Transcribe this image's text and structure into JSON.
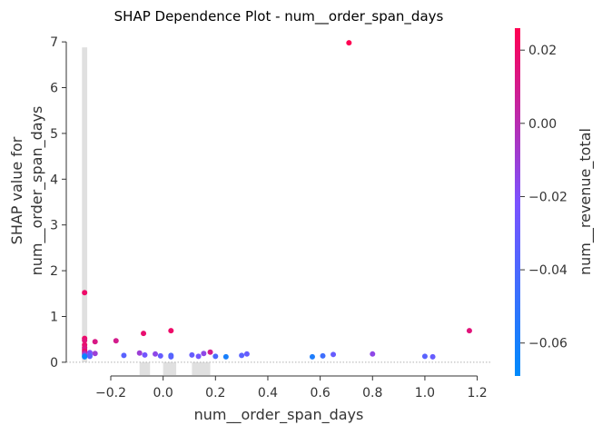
{
  "chart_data": {
    "type": "scatter",
    "title": "SHAP Dependence Plot - num__order_span_days",
    "xlabel": "num__order_span_days",
    "ylabel_lines": [
      "SHAP value for",
      "num__order_span_days"
    ],
    "xlim": [
      -0.37,
      1.25
    ],
    "ylim": [
      -0.3,
      7.3
    ],
    "x_ticks": [
      -0.2,
      0.0,
      0.2,
      0.4,
      0.6,
      0.8,
      1.0,
      1.2
    ],
    "x_tick_labels": [
      "−0.2",
      "0.0",
      "0.2",
      "0.4",
      "0.6",
      "0.8",
      "1.0",
      "1.2"
    ],
    "y_ticks": [
      0,
      1,
      2,
      3,
      4,
      5,
      6,
      7
    ],
    "y_tick_labels": [
      "0",
      "1",
      "2",
      "3",
      "4",
      "5",
      "6",
      "7"
    ],
    "grid": false,
    "zero_line": true,
    "colorbar": {
      "label": "num__revenue_total",
      "range": [
        -0.069,
        0.026
      ],
      "ticks": [
        0.02,
        0.0,
        -0.02,
        -0.04,
        -0.06
      ],
      "tick_labels": [
        "0.02",
        "0.00",
        "−0.02",
        "−0.04",
        "−0.06"
      ],
      "low_color": "#008afb",
      "mid_color": "#7c52ff",
      "high_color": "#ff0052"
    },
    "histogram": {
      "color": "#e0e0e0",
      "bins": [
        {
          "x0": -0.31,
          "x1": -0.29,
          "height": 6.88
        },
        {
          "x0": -0.09,
          "x1": -0.05,
          "height": -0.28
        },
        {
          "x0": 0.0,
          "x1": 0.05,
          "height": -0.28
        },
        {
          "x0": 0.11,
          "x1": 0.18,
          "height": -0.28
        }
      ]
    },
    "points": [
      {
        "x": 0.71,
        "y": 6.98,
        "c": 0.026
      },
      {
        "x": -0.3,
        "y": 1.52,
        "c": 0.02
      },
      {
        "x": 1.17,
        "y": 0.69,
        "c": 0.015
      },
      {
        "x": 0.03,
        "y": 0.69,
        "c": 0.02
      },
      {
        "x": -0.075,
        "y": 0.63,
        "c": 0.018
      },
      {
        "x": -0.3,
        "y": 0.52,
        "c": 0.02
      },
      {
        "x": -0.3,
        "y": 0.48,
        "c": 0.015
      },
      {
        "x": -0.18,
        "y": 0.47,
        "c": 0.01
      },
      {
        "x": -0.26,
        "y": 0.45,
        "c": 0.012
      },
      {
        "x": -0.3,
        "y": 0.38,
        "c": 0.018
      },
      {
        "x": -0.3,
        "y": 0.32,
        "c": 0.015
      },
      {
        "x": -0.3,
        "y": 0.28,
        "c": 0.01
      },
      {
        "x": -0.3,
        "y": 0.24,
        "c": 0.02
      },
      {
        "x": -0.3,
        "y": 0.2,
        "c": 0.005
      },
      {
        "x": -0.3,
        "y": 0.17,
        "c": -0.01
      },
      {
        "x": -0.3,
        "y": 0.14,
        "c": -0.05
      },
      {
        "x": -0.3,
        "y": 0.12,
        "c": -0.065
      },
      {
        "x": -0.28,
        "y": 0.21,
        "c": -0.02
      },
      {
        "x": -0.26,
        "y": 0.19,
        "c": -0.01
      },
      {
        "x": -0.28,
        "y": 0.16,
        "c": -0.03
      },
      {
        "x": -0.28,
        "y": 0.13,
        "c": -0.035
      },
      {
        "x": -0.15,
        "y": 0.15,
        "c": -0.035
      },
      {
        "x": -0.09,
        "y": 0.2,
        "c": -0.01
      },
      {
        "x": -0.07,
        "y": 0.16,
        "c": -0.025
      },
      {
        "x": -0.03,
        "y": 0.18,
        "c": -0.015
      },
      {
        "x": -0.01,
        "y": 0.14,
        "c": -0.03
      },
      {
        "x": 0.03,
        "y": 0.15,
        "c": -0.04
      },
      {
        "x": 0.03,
        "y": 0.12,
        "c": -0.035
      },
      {
        "x": 0.11,
        "y": 0.16,
        "c": -0.03
      },
      {
        "x": 0.135,
        "y": 0.13,
        "c": -0.025
      },
      {
        "x": 0.155,
        "y": 0.19,
        "c": -0.015
      },
      {
        "x": 0.18,
        "y": 0.22,
        "c": 0.01
      },
      {
        "x": 0.2,
        "y": 0.13,
        "c": -0.04
      },
      {
        "x": 0.24,
        "y": 0.12,
        "c": -0.06
      },
      {
        "x": 0.3,
        "y": 0.15,
        "c": -0.035
      },
      {
        "x": 0.32,
        "y": 0.18,
        "c": -0.03
      },
      {
        "x": 0.57,
        "y": 0.12,
        "c": -0.058
      },
      {
        "x": 0.61,
        "y": 0.14,
        "c": -0.045
      },
      {
        "x": 0.65,
        "y": 0.17,
        "c": -0.03
      },
      {
        "x": 0.8,
        "y": 0.18,
        "c": -0.015
      },
      {
        "x": 1.0,
        "y": 0.13,
        "c": -0.035
      },
      {
        "x": 1.03,
        "y": 0.12,
        "c": -0.03
      }
    ]
  }
}
